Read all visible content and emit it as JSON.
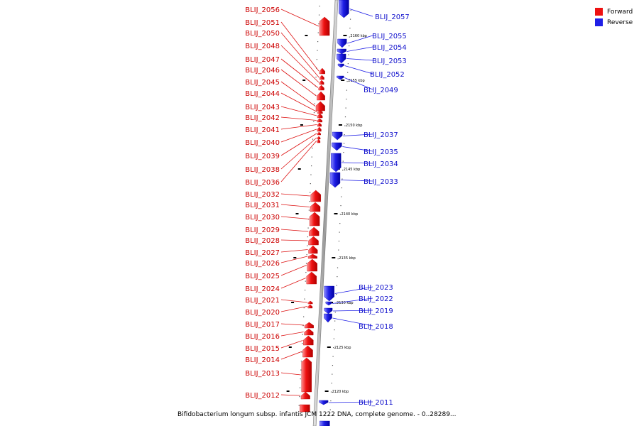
{
  "legend": {
    "forward_label": "Forward",
    "reverse_label": "Reverse",
    "forward_color": "#ee1111",
    "reverse_color": "#1f1fe6"
  },
  "caption": "Bifidobacterium longum subsp. infantis JCM 1222 DNA, complete genome. - 0..28289...",
  "scale_ticks": [
    {
      "label": "2160 kbp"
    },
    {
      "label": "2155 kbp"
    },
    {
      "label": "2150 kbp"
    },
    {
      "label": "2145 kbp"
    },
    {
      "label": "2140 kbp"
    },
    {
      "label": "2135 kbp"
    },
    {
      "label": "2130 kbp"
    },
    {
      "label": "2125 kbp"
    },
    {
      "label": "2120 kbp"
    }
  ],
  "forward_genes": [
    {
      "name": "BLIJ_2056"
    },
    {
      "name": "BLIJ_2051"
    },
    {
      "name": "BLIJ_2050"
    },
    {
      "name": "BLIJ_2048"
    },
    {
      "name": "BLIJ_2047"
    },
    {
      "name": "BLIJ_2046"
    },
    {
      "name": "BLIJ_2045"
    },
    {
      "name": "BLIJ_2044"
    },
    {
      "name": "BLIJ_2043"
    },
    {
      "name": "BLIJ_2042"
    },
    {
      "name": "BLIJ_2041"
    },
    {
      "name": "BLIJ_2040"
    },
    {
      "name": "BLIJ_2039"
    },
    {
      "name": "BLIJ_2038"
    },
    {
      "name": "BLIJ_2036"
    },
    {
      "name": "BLIJ_2032"
    },
    {
      "name": "BLIJ_2031"
    },
    {
      "name": "BLIJ_2030"
    },
    {
      "name": "BLIJ_2029"
    },
    {
      "name": "BLIJ_2028"
    },
    {
      "name": "BLIJ_2027"
    },
    {
      "name": "BLIJ_2026"
    },
    {
      "name": "BLIJ_2025"
    },
    {
      "name": "BLIJ_2024"
    },
    {
      "name": "BLIJ_2021"
    },
    {
      "name": "BLIJ_2020"
    },
    {
      "name": "BLIJ_2017"
    },
    {
      "name": "BLIJ_2016"
    },
    {
      "name": "BLIJ_2015"
    },
    {
      "name": "BLIJ_2014"
    },
    {
      "name": "BLIJ_2013"
    },
    {
      "name": "BLIJ_2012"
    }
  ],
  "reverse_genes": [
    {
      "name": "BLIJ_2057"
    },
    {
      "name": "BLIJ_2055"
    },
    {
      "name": "BLIJ_2054"
    },
    {
      "name": "BLIJ_2053"
    },
    {
      "name": "BLIJ_2052"
    },
    {
      "name": "BLIJ_2049"
    },
    {
      "name": "BLIJ_2037"
    },
    {
      "name": "BLIJ_2035"
    },
    {
      "name": "BLIJ_2034"
    },
    {
      "name": "BLIJ_2033"
    },
    {
      "name": "BLIJ_2023"
    },
    {
      "name": "BLIJ_2022"
    },
    {
      "name": "BLIJ_2019"
    },
    {
      "name": "BLIJ_2018"
    },
    {
      "name": "BLIJ_2011"
    }
  ]
}
